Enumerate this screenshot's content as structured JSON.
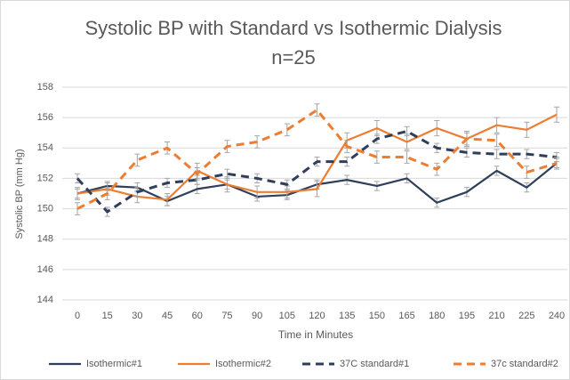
{
  "chart_data": {
    "type": "line",
    "title": "Systolic BP with Standard vs Isothermic Dialysis",
    "subtitle": "n=25",
    "x_label": "Time in Minutes",
    "y_label": "Systolic BP (mm Hg)",
    "categories": [
      "0",
      "15",
      "30",
      "45",
      "60",
      "75",
      "90",
      "105",
      "120",
      "135",
      "150",
      "165",
      "180",
      "195",
      "210",
      "225",
      "240"
    ],
    "ylim": [
      144,
      158
    ],
    "yticks": [
      144,
      146,
      148,
      150,
      152,
      154,
      156,
      158
    ],
    "grid": true,
    "legend": "bottom",
    "series": [
      {
        "name": "Isothermic#1",
        "color": "#2f3e5a",
        "dashed": false,
        "values": [
          151.0,
          151.5,
          151.4,
          150.5,
          151.3,
          151.6,
          150.8,
          150.9,
          151.6,
          151.9,
          151.5,
          152.0,
          150.4,
          151.1,
          152.5,
          151.4,
          153.0
        ],
        "errors": [
          0.3,
          0.3,
          0.3,
          0.3,
          0.3,
          0.3,
          0.3,
          0.3,
          0.3,
          0.3,
          0.3,
          0.3,
          0.3,
          0.3,
          0.3,
          0.3,
          0.3
        ]
      },
      {
        "name": "Isothermic#2",
        "color": "#ed7d31",
        "dashed": false,
        "values": [
          151.0,
          151.3,
          150.8,
          150.6,
          152.5,
          151.6,
          151.1,
          151.1,
          151.3,
          154.5,
          155.3,
          154.4,
          155.3,
          154.6,
          155.5,
          155.2,
          156.2
        ],
        "errors": [
          0.4,
          0.4,
          0.4,
          0.4,
          0.5,
          0.5,
          0.4,
          0.4,
          0.5,
          0.5,
          0.5,
          0.5,
          0.5,
          0.5,
          0.5,
          0.5,
          0.5
        ]
      },
      {
        "name": "37C standard#1",
        "color": "#2f3e5a",
        "dashed": true,
        "values": [
          152.0,
          149.8,
          151.1,
          151.7,
          151.9,
          152.3,
          152.0,
          151.6,
          153.1,
          153.1,
          154.6,
          155.1,
          154.0,
          153.7,
          153.6,
          153.6,
          153.4
        ],
        "errors": [
          0.3,
          0.3,
          0.3,
          0.3,
          0.3,
          0.3,
          0.3,
          0.3,
          0.3,
          0.3,
          0.3,
          0.3,
          0.3,
          0.3,
          0.3,
          0.3,
          0.3
        ]
      },
      {
        "name": "37c standard#2",
        "color": "#ed7d31",
        "dashed": true,
        "values": [
          150.0,
          151.0,
          153.2,
          154.0,
          152.3,
          154.1,
          154.4,
          155.2,
          156.5,
          154.1,
          153.4,
          153.4,
          152.6,
          154.6,
          154.5,
          152.4,
          153.0
        ],
        "errors": [
          0.4,
          0.4,
          0.4,
          0.4,
          0.4,
          0.4,
          0.4,
          0.4,
          0.4,
          0.4,
          0.4,
          0.4,
          0.4,
          0.4,
          0.4,
          0.4,
          0.4
        ]
      }
    ]
  }
}
